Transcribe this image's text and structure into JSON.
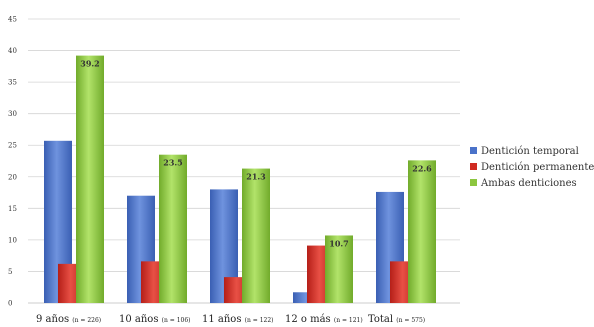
{
  "chart_data": {
    "type": "bar",
    "title": "",
    "xlabel": "",
    "ylabel": "",
    "ylim": [
      0,
      45
    ],
    "yticks": [
      0,
      5,
      10,
      15,
      20,
      25,
      30,
      35,
      40,
      45
    ],
    "yticks_labels": [
      "0",
      "5",
      "10",
      "15",
      "20",
      "25",
      "30",
      "35",
      "40",
      "45"
    ],
    "grid": true,
    "legend_position": "right",
    "categories": [
      "9 años",
      "10 años",
      "11 años",
      "12 o más",
      "Total"
    ],
    "category_n": [
      "(n = 226)",
      "(n = 106)",
      "(n = 122)",
      "(n = 121)",
      "(n = 575)"
    ],
    "series": [
      {
        "name": "Dentición temporal",
        "color": "#4a72c9",
        "values": [
          25.7,
          17.0,
          18.0,
          1.7,
          17.6
        ],
        "labels": [
          "",
          "",
          "",
          "",
          ""
        ]
      },
      {
        "name": "Dentición permanente",
        "color": "#d02b22",
        "values": [
          6.2,
          6.6,
          4.1,
          9.1,
          6.6
        ],
        "labels": [
          "",
          "",
          "",
          "",
          ""
        ]
      },
      {
        "name": "Ambas denticiones",
        "color": "#8cc63f",
        "values": [
          39.2,
          23.5,
          21.3,
          10.7,
          22.6
        ],
        "labels": [
          "39.2",
          "23.5",
          "21.3",
          "10.7",
          "22.6"
        ]
      }
    ]
  }
}
